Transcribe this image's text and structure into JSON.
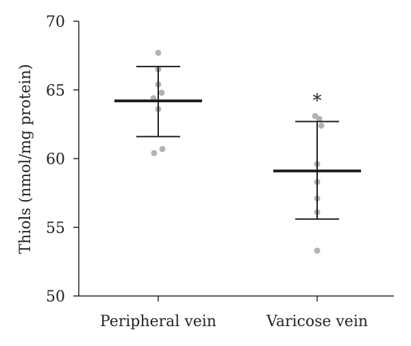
{
  "chart_data": {
    "type": "scatter",
    "ylabel": "Thiols (nmol/mg protein)",
    "ylim": [
      50,
      70
    ],
    "yticks": [
      50,
      55,
      60,
      65,
      70
    ],
    "categories": [
      "Peripheral vein",
      "Varicose vein"
    ],
    "groups": [
      {
        "category": "Peripheral vein",
        "points": [
          67.7,
          66.5,
          65.4,
          64.8,
          64.4,
          63.6,
          60.7,
          60.4
        ],
        "mean": 64.2,
        "error_upper": 66.7,
        "error_lower": 61.6
      },
      {
        "category": "Varicose vein",
        "points": [
          63.1,
          62.9,
          62.4,
          59.6,
          58.3,
          57.1,
          56.1,
          53.3
        ],
        "mean": 59.1,
        "error_upper": 62.7,
        "error_lower": 55.6,
        "annotation": "*"
      }
    ],
    "colors": {
      "points": "#b3b3b3",
      "lines": "#1a1a1a"
    }
  }
}
